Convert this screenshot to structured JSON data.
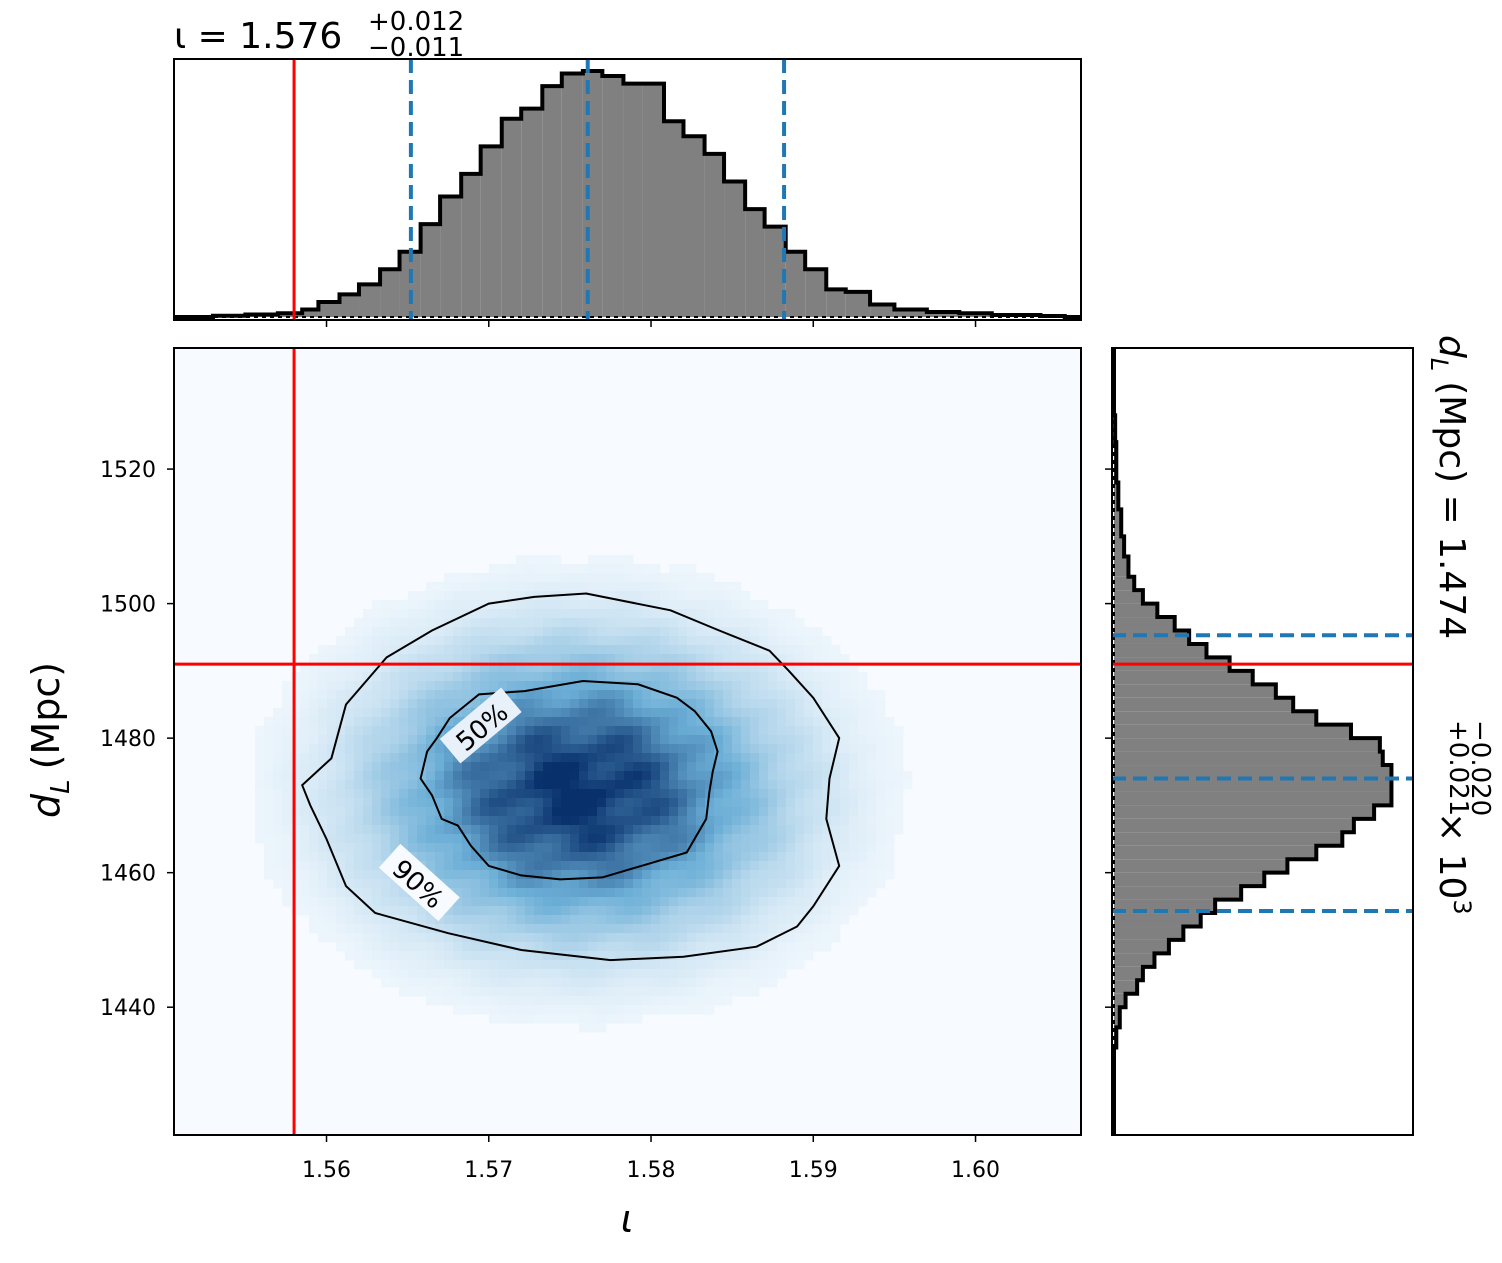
{
  "chart_data": {
    "type": "corner-posterior",
    "panels": [
      {
        "id": "iota-marginal",
        "kind": "histogram",
        "title_param": "ι",
        "title_median": "1.576",
        "title_plus": "+0.012",
        "title_minus": "−0.011",
        "x": [
          1.551,
          1.553,
          1.555,
          1.557,
          1.5585,
          1.5595,
          1.5608,
          1.562,
          1.5633,
          1.5645,
          1.5658,
          1.567,
          1.5683,
          1.5695,
          1.5708,
          1.572,
          1.5733,
          1.5745,
          1.5758,
          1.577,
          1.5783,
          1.5795,
          1.5808,
          1.582,
          1.5833,
          1.5845,
          1.5858,
          1.587,
          1.5883,
          1.5895,
          1.5908,
          1.592,
          1.5935,
          1.595,
          1.597,
          1.599,
          1.601,
          1.604
        ],
        "density": [
          0.0,
          0.005,
          0.01,
          0.015,
          0.03,
          0.06,
          0.09,
          0.13,
          0.19,
          0.26,
          0.37,
          0.48,
          0.57,
          0.68,
          0.79,
          0.83,
          0.92,
          0.97,
          0.98,
          0.96,
          0.93,
          0.93,
          0.78,
          0.72,
          0.65,
          0.54,
          0.43,
          0.36,
          0.26,
          0.19,
          0.11,
          0.1,
          0.05,
          0.03,
          0.02,
          0.015,
          0.008,
          0.004
        ],
        "truth": 1.558,
        "quantiles": [
          1.5652,
          1.5761,
          1.5882
        ],
        "xlim": [
          1.5506,
          1.6065
        ]
      },
      {
        "id": "joint-2d",
        "kind": "density-with-contours",
        "colormap": "Blues",
        "peak": {
          "x": 1.5755,
          "y": 1472
        },
        "contour_50_iota": [
          1.5816,
          1.5827,
          1.5837,
          1.5841,
          1.5838,
          1.5836,
          1.5834,
          1.5822,
          1.5794,
          1.577,
          1.5744,
          1.572,
          1.57,
          1.5689,
          1.5681,
          1.5671,
          1.5665,
          1.5658,
          1.5662,
          1.5668,
          1.5676,
          1.5694,
          1.5722,
          1.5758,
          1.5792,
          1.5816
        ],
        "contour_50_dL": [
          1486.0,
          1484.0,
          1481.0,
          1478.0,
          1475.0,
          1472.0,
          1468.0,
          1463.0,
          1461.0,
          1459.3,
          1459.0,
          1459.6,
          1461.0,
          1464.0,
          1467.0,
          1468.0,
          1471.5,
          1474.0,
          1478.0,
          1480.0,
          1483.0,
          1486.5,
          1487.0,
          1488.5,
          1488.0,
          1486.0
        ],
        "contour_90_iota": [
          1.576,
          1.5812,
          1.5842,
          1.5873,
          1.5885,
          1.59,
          1.5916,
          1.591,
          1.5908,
          1.5916,
          1.59,
          1.589,
          1.5865,
          1.582,
          1.5775,
          1.572,
          1.5675,
          1.563,
          1.5612,
          1.56,
          1.559,
          1.5585,
          1.5603,
          1.5612,
          1.5637,
          1.5665,
          1.57,
          1.5728,
          1.576
        ],
        "contour_90_dL": [
          1501.5,
          1499.0,
          1496.0,
          1493.0,
          1490.0,
          1486.0,
          1480.0,
          1474.0,
          1468.0,
          1461.0,
          1455.0,
          1452.0,
          1449.0,
          1447.5,
          1447.0,
          1448.5,
          1451.0,
          1454.0,
          1458.0,
          1465.0,
          1470.0,
          1473.0,
          1477.0,
          1485.0,
          1492.0,
          1496.0,
          1500.0,
          1501.0,
          1501.5
        ],
        "label_50": "50%",
        "label_90": "90%",
        "truth": {
          "x": 1.558,
          "y": 1491
        },
        "xlim": [
          1.5506,
          1.6065
        ],
        "ylim": [
          1421,
          1538
        ],
        "xticks": [
          1.56,
          1.57,
          1.58,
          1.59,
          1.6
        ],
        "xtick_labels": [
          "1.56",
          "1.57",
          "1.58",
          "1.59",
          "1.60"
        ],
        "yticks": [
          1440,
          1460,
          1480,
          1500,
          1520
        ],
        "ytick_labels": [
          "1440",
          "1460",
          "1480",
          "1500",
          "1520"
        ],
        "xlabel": "ι",
        "ylabel_main": "d",
        "ylabel_sub": "L",
        "ylabel_unit": "(Mpc)"
      },
      {
        "id": "dL-marginal",
        "kind": "histogram-horizontal",
        "title_param": "d",
        "title_sub": "L",
        "title_unit": "(Mpc) = 1.474",
        "title_plus": "+0.021",
        "title_minus": "−0.020",
        "title_scale": "× 10",
        "title_exp": "3",
        "y": [
          1434.0,
          1437.0,
          1440.0,
          1442.0,
          1444.0,
          1446.0,
          1448.0,
          1450.0,
          1452.0,
          1454.0,
          1456.0,
          1458.0,
          1460.0,
          1462.0,
          1464.0,
          1466.0,
          1468.0,
          1470.0,
          1472.0,
          1474.0,
          1476.0,
          1478.0,
          1480.0,
          1482.0,
          1484.0,
          1486.0,
          1488.0,
          1490.0,
          1492.0,
          1494.0,
          1496.0,
          1498.0,
          1500.0,
          1502.0,
          1504.0,
          1507.0,
          1510.0,
          1514.0,
          1518.0,
          1524.0
        ],
        "density": [
          0.008,
          0.02,
          0.04,
          0.08,
          0.1,
          0.14,
          0.19,
          0.24,
          0.3,
          0.35,
          0.44,
          0.52,
          0.6,
          0.7,
          0.79,
          0.83,
          0.9,
          0.96,
          0.96,
          0.96,
          0.93,
          0.92,
          0.82,
          0.7,
          0.62,
          0.56,
          0.48,
          0.4,
          0.32,
          0.26,
          0.21,
          0.15,
          0.1,
          0.07,
          0.05,
          0.035,
          0.025,
          0.015,
          0.008,
          0.004
        ],
        "truth": 1491,
        "quantiles": [
          1454.3,
          1474.0,
          1495.3
        ],
        "ylim": [
          1421,
          1538
        ]
      }
    ],
    "colors": {
      "truth": "#ff0000",
      "quantile": "#1f77b4",
      "hist_fill": "#808080",
      "hist_edge": "#000000",
      "density_low": "#f7fbff",
      "density_high": "#08306b"
    }
  }
}
